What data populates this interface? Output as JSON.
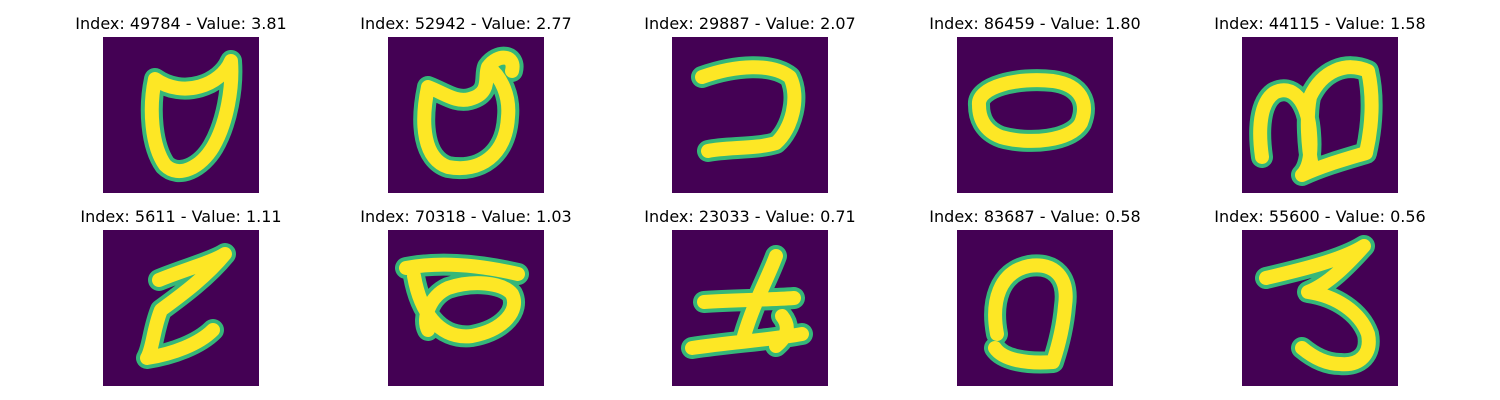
{
  "panels": [
    {
      "label": "Index: 49784 - Value: 3.81",
      "glyph": "loop-a"
    },
    {
      "label": "Index: 52942 - Value: 2.77",
      "glyph": "loop-b"
    },
    {
      "label": "Index: 29887 - Value: 2.07",
      "glyph": "hook"
    },
    {
      "label": "Index: 86459 - Value: 1.80",
      "glyph": "oval"
    },
    {
      "label": "Index: 44115 - Value: 1.58",
      "glyph": "double-loop"
    },
    {
      "label": "Index: 5611 - Value: 1.11",
      "glyph": "zigzag"
    },
    {
      "label": "Index: 70318 - Value: 1.03",
      "glyph": "loop-bar"
    },
    {
      "label": "Index: 23033 - Value: 0.71",
      "glyph": "cross-stroke"
    },
    {
      "label": "Index: 83687 - Value: 0.58",
      "glyph": "tilted-loop"
    },
    {
      "label": "Index: 55600 - Value: 0.56",
      "glyph": "three"
    }
  ],
  "colors": {
    "background": "#440154",
    "stroke_core": "#fde725",
    "stroke_edge": "#35b779"
  }
}
